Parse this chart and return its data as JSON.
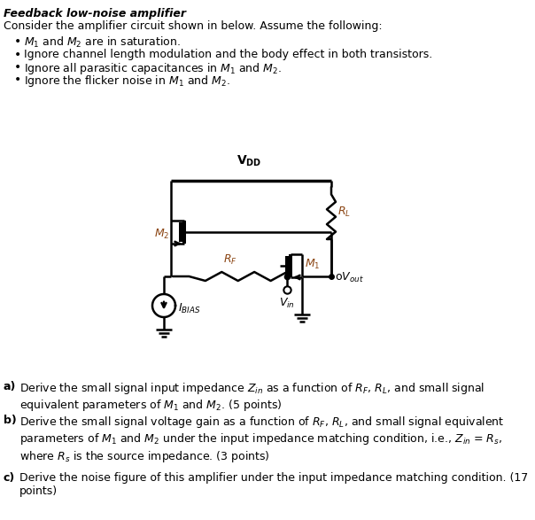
{
  "title": "Feedback low-noise amplifier",
  "intro": "Consider the amplifier circuit shown in below. Assume the following:",
  "b1": "$M_1$ and $M_2$ are in saturation.",
  "b2": "Ignore channel length modulation and the body effect in both transistors.",
  "b3": "Ignore all parasitic capacitances in $M_1$ and $M_2$.",
  "b4": "Ignore the flicker noise in $M_1$ and $M_2$.",
  "qa_lbl": "a)",
  "qa": "Derive the small signal input impedance $Z_{in}$ as a function of $R_F$, $R_L$, and small signal equivalent parameters of $M_1$ and $M_2$. (5 points)",
  "qb_lbl": "b)",
  "qb": "Derive the small signal voltage gain as a function of $R_F$, $R_L$, and small signal equivalent parameters of $M_1$ and $M_2$ under the input impedance matching condition, i.e., $Z_{in}$ = $R_s$, where $R_s$ is the source impedance. (3 points)",
  "qc_lbl": "c)",
  "qc": "Derive the noise figure of this amplifier under the input impedance matching condition. (17 points)",
  "bg": "#ffffff",
  "black": "#000000",
  "brown": "#8B4513",
  "figw": 6.04,
  "figh": 5.87,
  "dpi": 100
}
